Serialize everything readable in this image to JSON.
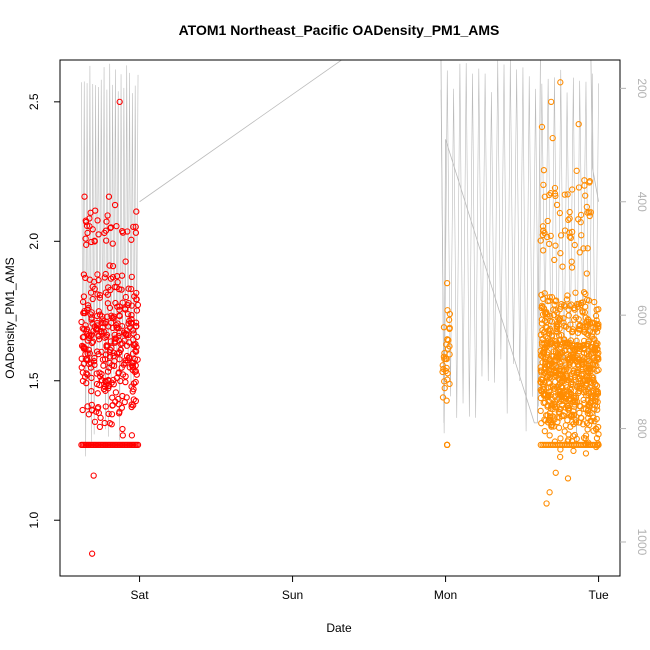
{
  "chart_data": {
    "type": "scatter",
    "title": "ATOM1 Northeast_Pacific OADensity_PM1_AMS",
    "xlabel": "Date",
    "ylabel": "OADensity_PM1_AMS",
    "x_ticks": [
      {
        "label": "Sat",
        "day": 1.0
      },
      {
        "label": "Sun",
        "day": 2.0
      },
      {
        "label": "Mon",
        "day": 3.0
      },
      {
        "label": "Tue",
        "day": 4.0
      }
    ],
    "xlim_days": [
      0.48,
      4.14
    ],
    "ylim": [
      0.8,
      2.65
    ],
    "y_ticks": [
      1.0,
      1.5,
      2.0,
      2.5
    ],
    "y2_label": "",
    "y2_ticks": [
      200,
      400,
      600,
      800,
      1000
    ],
    "y2lim_reversed": [
      150,
      1060
    ],
    "grid": false,
    "series": [
      {
        "color": "#ff0000",
        "marker": "open-circle",
        "x_range_days": [
          0.62,
          0.99
        ],
        "floor_value": 1.27,
        "highlights": [
          [
            0.64,
            2.16
          ],
          [
            0.66,
            2.03
          ],
          [
            0.69,
            0.88
          ],
          [
            0.71,
            2.11
          ],
          [
            0.8,
            2.16
          ],
          [
            0.87,
            2.5
          ],
          [
            0.84,
            2.13
          ],
          [
            0.77,
            2.03
          ],
          [
            0.7,
            1.16
          ],
          [
            0.82,
            1.38
          ]
        ],
        "clusters": [
          {
            "x0": 0.62,
            "x1": 0.99,
            "ymin": 1.3,
            "ymax": 1.95,
            "n": 320
          },
          {
            "x0": 0.62,
            "x1": 0.99,
            "ymin": 1.95,
            "ymax": 2.12,
            "n": 30
          }
        ]
      },
      {
        "color": "#ff8c00",
        "marker": "open-circle",
        "x_range_days": [
          2.97,
          4.0
        ],
        "floor_value": 1.27,
        "highlights": [
          [
            3.01,
            1.85
          ],
          [
            3.01,
            1.27
          ],
          [
            3.75,
            2.57
          ],
          [
            3.69,
            2.5
          ],
          [
            3.63,
            2.41
          ],
          [
            3.87,
            2.42
          ],
          [
            3.7,
            2.37
          ],
          [
            3.66,
            1.06
          ],
          [
            3.8,
            1.15
          ],
          [
            3.72,
            1.17
          ],
          [
            3.68,
            1.1
          ]
        ],
        "clusters": [
          {
            "x0": 2.98,
            "x1": 3.03,
            "ymin": 1.4,
            "ymax": 1.8,
            "n": 30
          },
          {
            "x0": 3.62,
            "x1": 4.0,
            "ymin": 1.22,
            "ymax": 1.85,
            "n": 700
          },
          {
            "x0": 3.62,
            "x1": 3.95,
            "ymin": 1.85,
            "ymax": 2.3,
            "n": 60
          }
        ]
      }
    ],
    "altitude_trace": {
      "color": "#bbbbbb",
      "x_days": [
        1.0,
        2.32,
        2.97,
        2.99,
        3.0,
        3.58,
        3.6,
        3.62,
        3.95,
        3.96,
        3.98,
        4.0
      ],
      "values": [
        400,
        150,
        150,
        790,
        290,
        790,
        790,
        150,
        150,
        340,
        370,
        400
      ]
    }
  }
}
